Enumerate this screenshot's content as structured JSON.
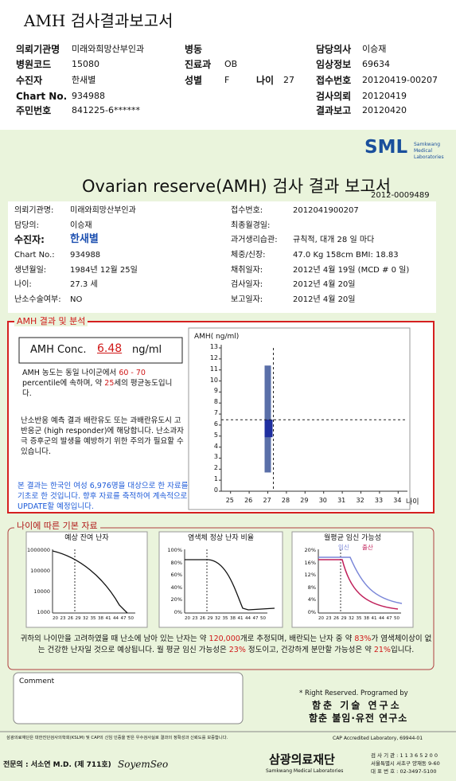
{
  "header": {
    "title": "AMH 검사결과보고서",
    "fields": [
      {
        "label": "의뢰기관명",
        "value": "미래와희망산부인과"
      },
      {
        "label": "병동"
      },
      {
        "label": "담당의사",
        "value": "이승재"
      },
      {
        "label": "병원코드",
        "value": "15080"
      },
      {
        "label": "진료과",
        "value": "OB"
      },
      {
        "label": "임상정보",
        "value": "69634"
      },
      {
        "label": "수진자",
        "value": "한새별"
      },
      {
        "label": "성별",
        "value": "F"
      },
      {
        "label": "나이",
        "value": "27"
      },
      {
        "label": "접수번호",
        "value": "20120419-00207"
      },
      {
        "label": "Chart No.",
        "value": "934988"
      },
      {
        "label": "검사의뢰",
        "value": "20120419"
      },
      {
        "label": "주민번호",
        "value": "841225-6******"
      },
      {
        "label": "결과보고",
        "value": "20120420"
      }
    ]
  },
  "report": {
    "logo": "SML",
    "logo_sub": [
      "Samkwang",
      "Medical",
      "Laboratories"
    ],
    "title": "Ovarian reserve(AMH) 검사 결과 보고서",
    "report_no": "2012-0009489",
    "info_left": [
      {
        "label": "의뢰기관명:",
        "value": "미래와희망산부인과"
      },
      {
        "label": "담당의:",
        "value": "이승재"
      },
      {
        "label": "수진자:",
        "value": "한새별"
      },
      {
        "label": "Chart No.:",
        "value": "934988"
      },
      {
        "label": "생년월일:",
        "value": "1984년 12월 25일"
      },
      {
        "label": "나이:",
        "value": "27.3 세"
      },
      {
        "label": "난소수술여부:",
        "value": "NO"
      }
    ],
    "info_right": [
      {
        "label": "접수번호:",
        "value": "2012041900207"
      },
      {
        "label": "최종월경일:"
      },
      {
        "label": "과거생리습관:",
        "value": "규칙적, 대개  28 일 마다"
      },
      {
        "label": "체중/신장:",
        "value": "47.0 Kg    158cm    BMI:  18.83"
      },
      {
        "label": "채취일자:",
        "value": "2012년  4월 19일    (MCD #  0  일)"
      },
      {
        "label": "검사일자:",
        "value": "2012년  4월 20일"
      },
      {
        "label": "보고일자:",
        "value": "2012년  4월 20일"
      }
    ],
    "analysis": {
      "heading": "AMH 결과 및 분석",
      "conc_label": "AMH Conc.",
      "conc_value": "6.48",
      "conc_unit": "ng/ml",
      "para1": [
        {
          "text": "AMH 농도는 동일 나이군에서 "
        },
        {
          "text": "60 -  70",
          "red": true
        },
        {
          "text": " percentile에 속하며, 약 "
        },
        {
          "text": "25",
          "red": true
        },
        {
          "text": "세의 평균농도입니다."
        }
      ],
      "para2": "난소반응 예측 결과 배란유도 또는 과배란유도시 고반응군 (high responder)에 해당합니다. 난소과자극 증후군의 발생을 예방하기 위한 주의가 필요할 수 있습니다.",
      "para3": "본 결과는 한국인 여성 6,976명을 대상으로 한 자료를 기초로 한 것입니다. 향후 자료를 축적하여 계속적으로 UPDATE할 예정입니다.",
      "chart": {
        "y_label": "AMH( ng/ml)",
        "x_label": "나이",
        "ylim": [
          0,
          13
        ],
        "yticks": [
          0,
          1,
          2,
          3,
          4,
          5,
          6,
          7,
          8,
          9,
          10,
          11,
          12,
          13
        ],
        "xlim": [
          24.5,
          34.5
        ],
        "xticks": [
          25,
          26,
          27,
          28,
          29,
          30,
          31,
          32,
          33,
          34
        ],
        "age": 27.3,
        "range": [
          1.7,
          11.4
        ],
        "box": [
          4.9,
          6.5
        ],
        "value": 6.48,
        "range_color": "#5a6fa8",
        "box_color": "#1f2fa0"
      }
    },
    "basics": {
      "heading": "나이에 따른 기본 자료",
      "xticks": [
        "20",
        "23",
        "26",
        "29",
        "32",
        "35",
        "38",
        "41",
        "44",
        "47",
        "50"
      ],
      "charts": [
        {
          "title": "예상 잔여 난자",
          "yticks": [
            "1000000",
            "100000",
            "10000",
            "1000"
          ]
        },
        {
          "title": "염색체 정상 난자 비율",
          "yticks": [
            "100%",
            "80%",
            "60%",
            "40%",
            "20%",
            "0%"
          ]
        },
        {
          "title": "월평균 임신 가능성",
          "legend": [
            {
              "name": "임신",
              "color": "#7a86d8"
            },
            {
              "name": "출산",
              "color": "#c0205a"
            }
          ],
          "yticks": [
            "20%",
            "16%",
            "12%",
            "8%",
            "4%",
            "0%"
          ]
        }
      ],
      "summary": [
        {
          "text": "귀하의 나이만을 고려하였을 때 난소에 남아 있는 난자는 약 "
        },
        {
          "text": "120,000",
          "red": true
        },
        {
          "text": "개로 추정되며, 배란되는 난자 중 약 "
        },
        {
          "text": "83%",
          "red": true
        },
        {
          "text": "가 염색체이상이 없는 건강한 난자일 것으로 예상됩니다. 월 평균 임신 가능성은 "
        },
        {
          "text": "23%",
          "red": true
        },
        {
          "text": " 정도이고, 건강하게 분만할 가능성은 약 "
        },
        {
          "text": "21%",
          "red": true
        },
        {
          "text": "입니다."
        }
      ]
    },
    "comment": "Comment",
    "credits": [
      "* Right Reserved. Programed by",
      "함춘 기술 연구소",
      "함춘 불임·유전 연구소"
    ],
    "footer": {
      "note": "삼광의료재단은 대한진단검사의학회(KSLM) 및 CAP의 신임 인증을 받은 우수검사실로 결과의 정확성과 신뢰도를 보증합니다.",
      "cap": "CAP Accredited Laboratory,  69944-01",
      "director": "전문의 : 서소연 M.D. (제 711호)",
      "signature": "SoyemSeo",
      "org": "삼광의료재단",
      "org_en": "Samkwang Medical Laboratories",
      "contact": [
        "검 사 기 관 : 1 1 3 6 5 2 0 0",
        "서울특별시 서초구 양재동 9-60",
        "대 표 번 호 : 02-3497-5100"
      ]
    }
  }
}
